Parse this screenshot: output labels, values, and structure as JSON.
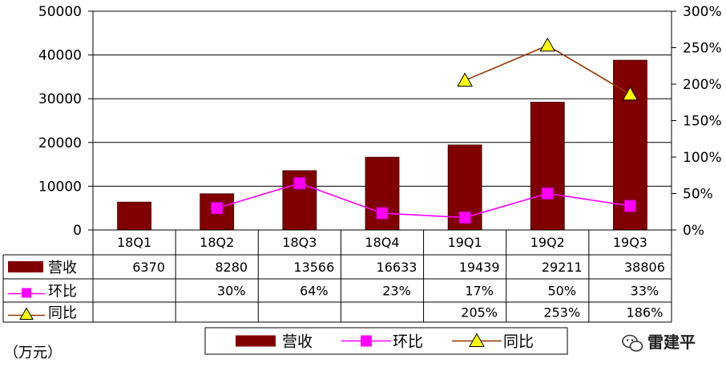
{
  "chart_data": {
    "type": "bar",
    "categories": [
      "18Q1",
      "18Q2",
      "18Q3",
      "18Q4",
      "19Q1",
      "19Q2",
      "19Q3"
    ],
    "unit_label": "（万元）",
    "y_left": {
      "min": 0,
      "max": 50000,
      "ticks": [
        "0",
        "10000",
        "20000",
        "30000",
        "40000",
        "50000"
      ]
    },
    "y_right": {
      "min": 0,
      "max": 300,
      "ticks": [
        "0%",
        "50%",
        "100%",
        "150%",
        "200%",
        "250%",
        "300%"
      ]
    },
    "grid": true,
    "legend_position": "bottom",
    "series": [
      {
        "name": "营收",
        "kind": "bar",
        "axis": "left",
        "color": "#800000",
        "values": [
          6370,
          8280,
          13566,
          16633,
          19439,
          29211,
          38806
        ],
        "labels": [
          "6370",
          "8280",
          "13566",
          "16633",
          "19439",
          "29211",
          "38806"
        ]
      },
      {
        "name": "环比",
        "kind": "line",
        "axis": "right",
        "color": "#ff00ff",
        "marker": "square",
        "values": [
          null,
          30,
          64,
          23,
          17,
          50,
          33
        ],
        "labels": [
          "",
          "30%",
          "64%",
          "23%",
          "17%",
          "50%",
          "33%"
        ]
      },
      {
        "name": "同比",
        "kind": "line",
        "axis": "right",
        "color": "#993300",
        "marker": "triangle",
        "marker_color": "#ffff00",
        "values": [
          null,
          null,
          null,
          null,
          205,
          253,
          186
        ],
        "labels": [
          "",
          "",
          "",
          "",
          "205%",
          "253%",
          "186%"
        ]
      }
    ]
  },
  "watermark": {
    "text": "雷建平",
    "icon": "wechat-icon"
  }
}
